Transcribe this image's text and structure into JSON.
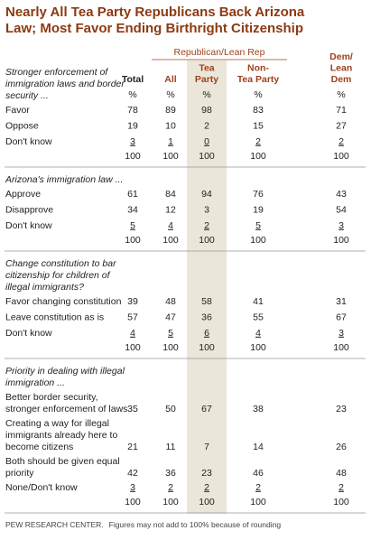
{
  "header": {
    "title": [
      "Nearly All Tea Party Republicans Back Arizona",
      "Law; Most Favor Ending Birthright Citizenship"
    ],
    "group": "Republican/Lean Rep",
    "columns": [
      [
        "Total"
      ],
      [
        "All"
      ],
      [
        "Tea",
        "Party"
      ],
      [
        "Non-",
        "Tea Party"
      ],
      [
        "Dem/",
        "Lean",
        "Dem"
      ]
    ],
    "percent_row": [
      "%",
      "%",
      "%",
      "%",
      "%"
    ]
  },
  "table": {
    "sections": [
      {
        "question": [
          "Stronger enforcement of",
          "immigration laws and border",
          "security ..."
        ],
        "rows": [
          {
            "label": [
              "Favor"
            ],
            "values": [
              78,
              89,
              98,
              83,
              71
            ]
          },
          {
            "label": [
              "Oppose"
            ],
            "values": [
              19,
              10,
              2,
              15,
              27
            ]
          },
          {
            "label": [
              "Don't know"
            ],
            "values": [
              3,
              1,
              0,
              2,
              2
            ]
          }
        ],
        "total": [
          100,
          100,
          100,
          100,
          100
        ]
      },
      {
        "question": [
          "Arizona's immigration law ..."
        ],
        "rows": [
          {
            "label": [
              "Approve"
            ],
            "values": [
              61,
              84,
              94,
              76,
              43
            ]
          },
          {
            "label": [
              "Disapprove"
            ],
            "values": [
              34,
              12,
              3,
              19,
              54
            ]
          },
          {
            "label": [
              "Don't know"
            ],
            "values": [
              5,
              4,
              2,
              5,
              3
            ]
          }
        ],
        "total": [
          100,
          100,
          100,
          100,
          100
        ]
      },
      {
        "question": [
          "Change constitution to bar",
          "citizenship for children of",
          "illegal immigrants?"
        ],
        "rows": [
          {
            "label": [
              "Favor changing constitution"
            ],
            "values": [
              39,
              48,
              58,
              41,
              31
            ]
          },
          {
            "label": [
              "Leave constitution as is"
            ],
            "values": [
              57,
              47,
              36,
              55,
              67
            ]
          },
          {
            "label": [
              "Don't know"
            ],
            "values": [
              4,
              5,
              6,
              4,
              3
            ]
          }
        ],
        "total": [
          100,
          100,
          100,
          100,
          100
        ]
      },
      {
        "question": [
          "Priority in dealing with illegal",
          "immigration ..."
        ],
        "rows": [
          {
            "label": [
              "Better border security,",
              "stronger enforcement of laws"
            ],
            "values": [
              35,
              50,
              67,
              38,
              23
            ]
          },
          {
            "label": [
              "Creating a way for illegal",
              "immigrants already here to",
              "become citizens"
            ],
            "values": [
              21,
              11,
              7,
              14,
              26
            ]
          },
          {
            "label": [
              "Both should be given equal",
              "priority"
            ],
            "values": [
              42,
              36,
              23,
              46,
              48
            ]
          },
          {
            "label": [
              "None/Don't know"
            ],
            "values": [
              3,
              2,
              2,
              2,
              2
            ]
          }
        ],
        "total": [
          100,
          100,
          100,
          100,
          100
        ]
      }
    ]
  },
  "footer": {
    "source": "PEW RESEARCH CENTER.",
    "note": "Figures may not add to 100% because of rounding"
  }
}
